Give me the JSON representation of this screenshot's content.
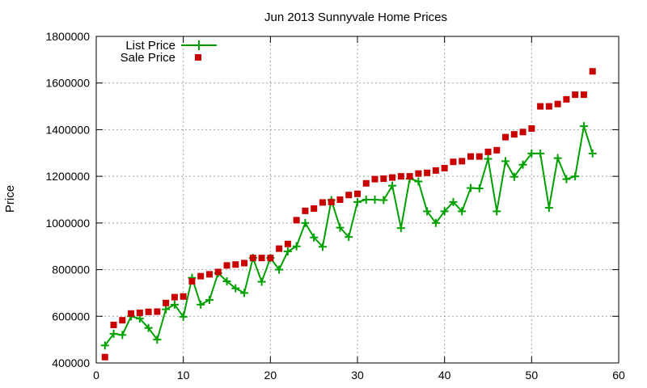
{
  "chart_data": {
    "type": "line",
    "title": "Jun 2013 Sunnyvale Home Prices",
    "xlabel": "",
    "ylabel": "Price",
    "xlim": [
      0,
      60
    ],
    "ylim": [
      400000,
      1800000
    ],
    "xticks": [
      0,
      10,
      20,
      30,
      40,
      50,
      60
    ],
    "yticks": [
      400000,
      600000,
      800000,
      1000000,
      1200000,
      1400000,
      1600000,
      1800000
    ],
    "grid": true,
    "legend_position": "top-left",
    "series": [
      {
        "name": "List Price",
        "style": "line-with-plus-markers",
        "color": "#00a000",
        "x": [
          1,
          2,
          3,
          4,
          5,
          6,
          7,
          8,
          9,
          10,
          11,
          12,
          13,
          14,
          15,
          16,
          17,
          18,
          19,
          20,
          21,
          22,
          23,
          24,
          25,
          26,
          27,
          28,
          29,
          30,
          31,
          32,
          33,
          34,
          35,
          36,
          37,
          38,
          39,
          40,
          41,
          42,
          43,
          44,
          45,
          46,
          47,
          48,
          49,
          50,
          51,
          52,
          53,
          54,
          55,
          56,
          57
        ],
        "values": [
          475000,
          525000,
          520000,
          600000,
          590000,
          550000,
          500000,
          630000,
          650000,
          598000,
          765000,
          650000,
          670000,
          785000,
          750000,
          720000,
          700000,
          850000,
          748000,
          850000,
          800000,
          878000,
          900000,
          1000000,
          938000,
          898000,
          1098000,
          980000,
          940000,
          1090000,
          1100000,
          1100000,
          1098000,
          1160000,
          978000,
          1190000,
          1178000,
          1050000,
          1000000,
          1050000,
          1090000,
          1050000,
          1150000,
          1148000,
          1275000,
          1050000,
          1265000,
          1198000,
          1250000,
          1298000,
          1298000,
          1065000,
          1278000,
          1188000,
          1200000,
          1415000,
          1298000
        ]
      },
      {
        "name": "Sale Price",
        "style": "square-markers",
        "color": "#c80000",
        "x": [
          1,
          2,
          3,
          4,
          5,
          6,
          7,
          8,
          9,
          10,
          11,
          12,
          13,
          14,
          15,
          16,
          17,
          18,
          19,
          20,
          21,
          22,
          23,
          24,
          25,
          26,
          27,
          28,
          29,
          30,
          31,
          32,
          33,
          34,
          35,
          36,
          37,
          38,
          39,
          40,
          41,
          42,
          43,
          44,
          45,
          46,
          47,
          48,
          49,
          50,
          51,
          52,
          53,
          54,
          55,
          56,
          57
        ],
        "values": [
          425000,
          563000,
          583000,
          612000,
          615000,
          619000,
          620000,
          657000,
          682000,
          685000,
          750000,
          772000,
          780000,
          790000,
          818000,
          822000,
          828000,
          850000,
          850000,
          850000,
          890000,
          910000,
          1012000,
          1052000,
          1062000,
          1088000,
          1090000,
          1100000,
          1120000,
          1125000,
          1170000,
          1188000,
          1190000,
          1195000,
          1200000,
          1200000,
          1212000,
          1215000,
          1225000,
          1235000,
          1262000,
          1265000,
          1285000,
          1285000,
          1305000,
          1312000,
          1368000,
          1380000,
          1390000,
          1405000,
          1500000,
          1500000,
          1510000,
          1530000,
          1550000,
          1550000,
          1650000
        ]
      }
    ]
  }
}
